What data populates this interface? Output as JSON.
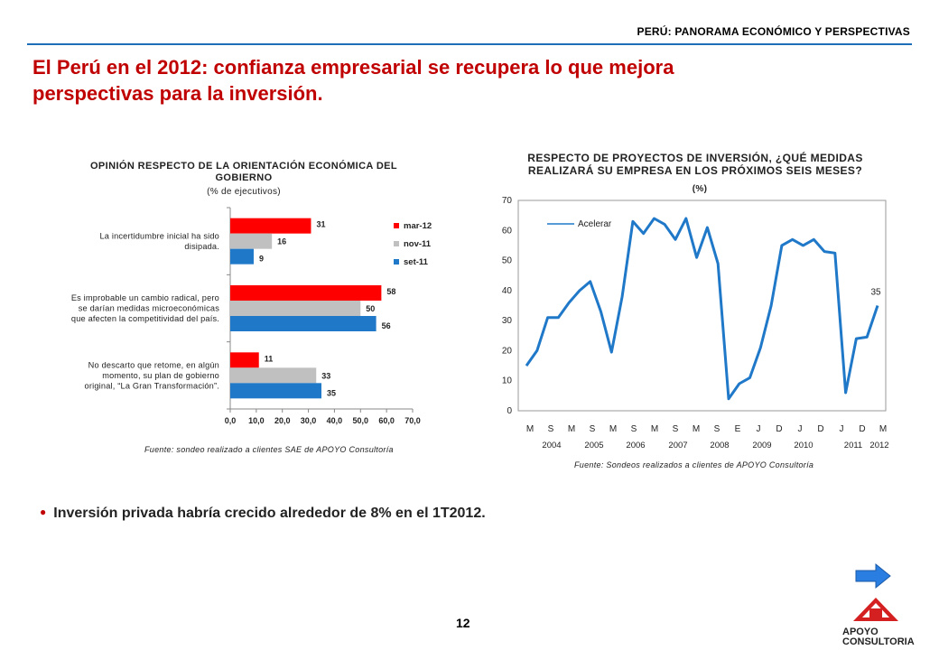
{
  "header": {
    "tag": "PERÚ: PANORAMA ECONÓMICO Y PERSPECTIVAS"
  },
  "page": {
    "title_line1": "El Perú en el 2012: confianza empresarial se recupera lo que mejora",
    "title_line2": "perspectivas para la inversión.",
    "bullet": "Inversión privada habría crecido alrededor de 8% en el 1T2012.",
    "page_number": "12"
  },
  "logo": {
    "line1": "APOYO",
    "line2": "CONSULTORIA"
  },
  "icons": {
    "next": "next-arrow-icon"
  },
  "colors": {
    "accent_red": "#c00000",
    "rule_blue": "#1f6fb8",
    "mar12": "#ff0000",
    "nov11": "#c0c0c0",
    "set11": "#1f78c8",
    "line": "#1f78c8"
  },
  "chart_data": [
    {
      "type": "bar",
      "orientation": "horizontal",
      "title_line1": "OPINIÓN RESPECTO DE LA ORIENTACIÓN ECONÓMICA DEL",
      "title_line2": "GOBIERNO",
      "subtitle": "(% de ejecutivos)",
      "categories": [
        [
          "La incertidumbre inicial ha sido",
          "disipada."
        ],
        [
          "Es improbable un cambio radical, pero",
          "se darían medidas microeconómicas",
          "que afecten la competitividad del país."
        ],
        [
          "No descarto que retome, en algún",
          "momento, su plan de gobierno",
          "original, “La Gran Transformación”."
        ]
      ],
      "series": [
        {
          "name": "mar-12",
          "color": "#ff0000",
          "values": [
            31,
            58,
            11
          ]
        },
        {
          "name": "nov-11",
          "color": "#c0c0c0",
          "values": [
            16,
            50,
            33
          ]
        },
        {
          "name": "set-11",
          "color": "#1f78c8",
          "values": [
            9,
            56,
            35
          ]
        }
      ],
      "xlim": [
        0,
        70
      ],
      "xticks": [
        "0,0",
        "10,0",
        "20,0",
        "30,0",
        "40,0",
        "50,0",
        "60,0",
        "70,0"
      ],
      "legend": "right",
      "source": "Fuente: sondeo realizado a clientes SAE de APOYO Consultoría"
    },
    {
      "type": "line",
      "title_line1": "RESPECTO DE PROYECTOS DE INVERSIÓN, ¿QUÉ MEDIDAS",
      "title_line2": "REALIZARÁ SU EMPRESA EN LOS PRÓXIMOS SEIS MESES?",
      "subtitle": "(%)",
      "ylim": [
        0,
        70
      ],
      "yticks": [
        "0",
        "10",
        "20",
        "30",
        "40",
        "50",
        "60",
        "70"
      ],
      "month_labels": [
        "M",
        "S",
        "M",
        "S",
        "M",
        "S",
        "M",
        "S",
        "M",
        "S",
        "E",
        "J",
        "D",
        "J",
        "D",
        "J",
        "D",
        "M"
      ],
      "year_labels": [
        "2004",
        "2005",
        "2006",
        "2007",
        "2008",
        "2009",
        "2010",
        "2011",
        "2012"
      ],
      "series": [
        {
          "name": "Acelerar",
          "color": "#1f78c8",
          "values": [
            15,
            20,
            31,
            31,
            36,
            40,
            43,
            33,
            19.5,
            38,
            63,
            59,
            64,
            62,
            57,
            64,
            51,
            61,
            49,
            4,
            9,
            11,
            21,
            35,
            55,
            57,
            55,
            57,
            53,
            52.5,
            6,
            24,
            24.5,
            35
          ]
        }
      ],
      "data_labels": [
        {
          "index": 33,
          "text": "35"
        }
      ],
      "legend": "top-left",
      "source": "Fuente: Sondeos realizados a clientes de APOYO Consultoría"
    }
  ]
}
